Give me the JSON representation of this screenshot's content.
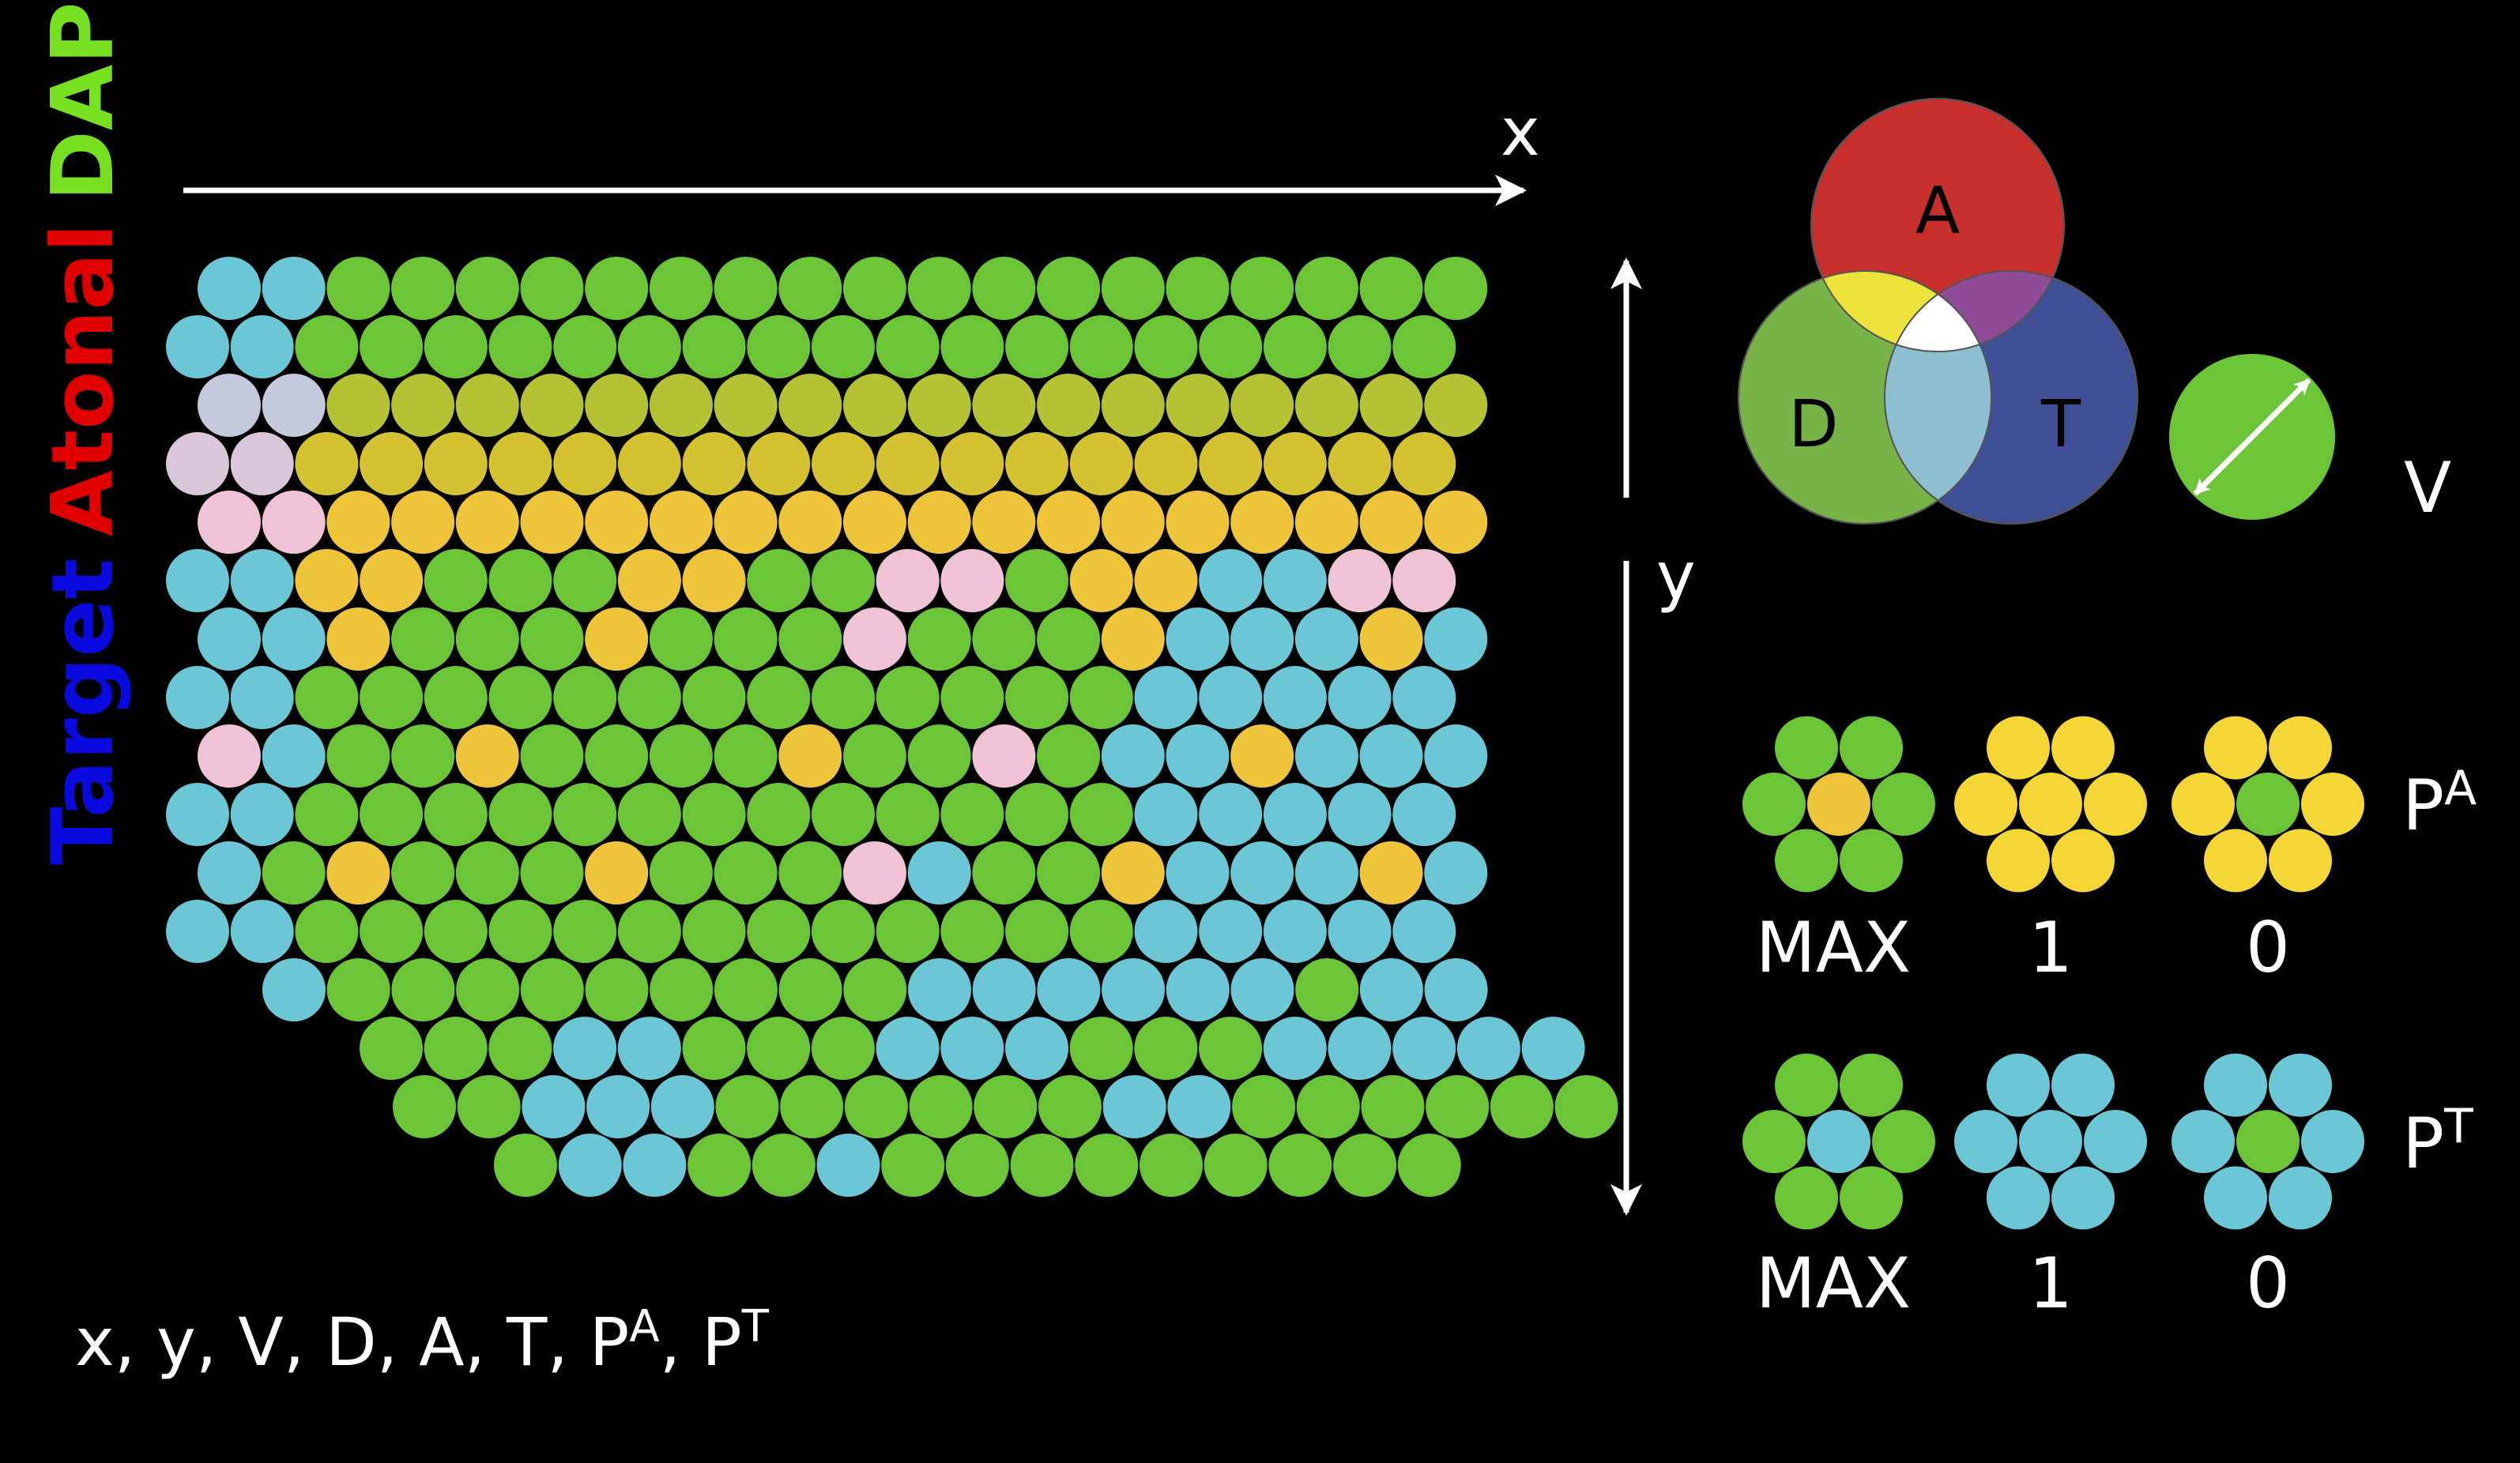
{
  "colors": {
    "background": "#000000",
    "green": "#6cc437",
    "cyan": "#6bc7d6",
    "pink": "#efc3d5",
    "gold": "#eec53a",
    "yellow_green": "#b4c233",
    "olive_yellow": "#d5c233",
    "lavender": "#c4cadc",
    "mauve": "#d9c7d9",
    "bright_yellow": "#f4d637",
    "arrow": "#ffffff",
    "text": "#ffffff",
    "label_target": "#0a0adf",
    "label_atonal": "#e00000",
    "label_dapi": "#77e021",
    "venn_A": "#c8302e",
    "venn_D": "#77b347",
    "venn_T": "#3f4f95",
    "venn_AD": "#ece23a",
    "venn_AT": "#8f4b95",
    "venn_DT": "#8dbfd0",
    "venn_ADT": "#ffffff"
  },
  "vertical_label": {
    "target": "Target",
    "atonal": "Atonal",
    "dapi": "DAPI"
  },
  "axes": {
    "x_label": "x",
    "y_label": "y"
  },
  "venn": {
    "a_label": "A",
    "d_label": "D",
    "t_label": "T"
  },
  "vector_label": "V",
  "variables_text": "x, y, V, D, A, T, P",
  "variables_sup_a": "A",
  "variables_sup_t": "T",
  "variables_sep": ", ",
  "pattern_a": {
    "label": "P",
    "sup": "A",
    "captions": [
      "MAX",
      "1",
      "0"
    ],
    "clusters": [
      {
        "center": "gold",
        "ring": "green"
      },
      {
        "center": "bright_yellow",
        "ring": "bright_yellow"
      },
      {
        "center": "green",
        "ring": "bright_yellow"
      }
    ]
  },
  "pattern_t": {
    "label": "P",
    "sup": "T",
    "captions": [
      "MAX",
      "1",
      "0"
    ],
    "clusters": [
      {
        "center": "cyan",
        "ring": "green"
      },
      {
        "center": "cyan",
        "ring": "cyan"
      },
      {
        "center": "green",
        "ring": "cyan"
      }
    ]
  },
  "grid_legend": {
    "G": "green",
    "C": "cyan",
    "P": "pink",
    "Y": "gold",
    "L": "yellow_green",
    "O": "olive_yellow",
    "V": "lavender",
    "M": "mauve"
  },
  "grid_rows": [
    "CCGGGGGGGGGGGGGGGGGG",
    "CCGGGGGGGGGGGGGGGGGG",
    "VVLLLLLLLLLLLLLLLLLL",
    "MMOOOOOOOOOOOOOOOOOO",
    "PPYYYYYYYYYYYYYYYYYY",
    "CCYYGGGYYGGPPGYYCCPP",
    "CCYGGGYGGGPGGGYCCCYC",
    "CCGGGGGGGGGGGGGCCCCC",
    "PCGGYGGGGYGGPGCCYCCC",
    "CCGGGGGGGGGGGGGCCCCC",
    "CGYGGGYGGGPCGGYCCCYC",
    "CCGGGGGGGGGGGGGCCCCC",
    "CGGGGGGGGGCCCCCCGCC",
    "GGGCCGGGCCCGGGCCCCC",
    "GGCCCGGGGGGCCGGGGGG",
    "GCCGGCGGGGGGGGG"
  ]
}
